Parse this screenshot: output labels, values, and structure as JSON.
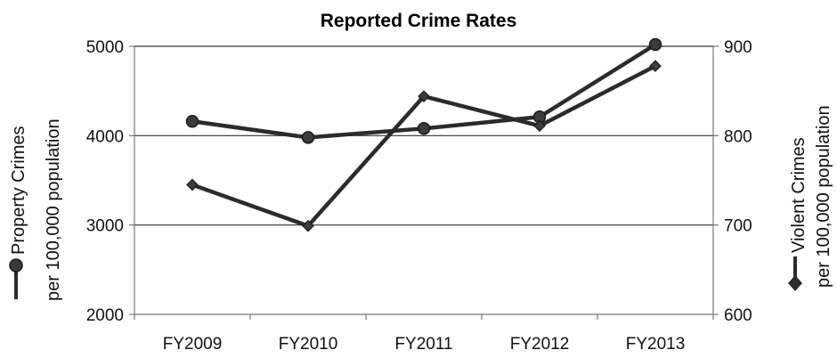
{
  "chart_data": {
    "type": "line",
    "title": "Reported Crime Rates",
    "categories": [
      "FY2009",
      "FY2010",
      "FY2011",
      "FY2012",
      "FY2013"
    ],
    "left_axis": {
      "label_line1": "Property Crimes",
      "label_line2": "per 100,000 population",
      "ylim": [
        2000,
        5000
      ],
      "ticks": [
        "2000",
        "3000",
        "4000",
        "5000"
      ],
      "tick_values": [
        2000,
        3000,
        4000,
        5000
      ]
    },
    "right_axis": {
      "label_line1": "Violent Crimes",
      "label_line2": "per 100,000 population",
      "ylim": [
        600,
        900
      ],
      "ticks": [
        "600",
        "700",
        "800",
        "900"
      ],
      "tick_values": [
        600,
        700,
        800,
        900
      ]
    },
    "series": [
      {
        "name": "Property Crimes per 100,000 population",
        "axis": "left",
        "marker": "circle",
        "values": [
          4160,
          3980,
          4080,
          4210,
          5020
        ]
      },
      {
        "name": "Violent Crimes per 100,000 population",
        "axis": "right",
        "marker": "diamond",
        "values": [
          745,
          699,
          844,
          811,
          878
        ]
      }
    ],
    "grid": true,
    "colors": {
      "line": "#2b2b2b",
      "grid": "#333333",
      "axis": "#777777"
    }
  }
}
